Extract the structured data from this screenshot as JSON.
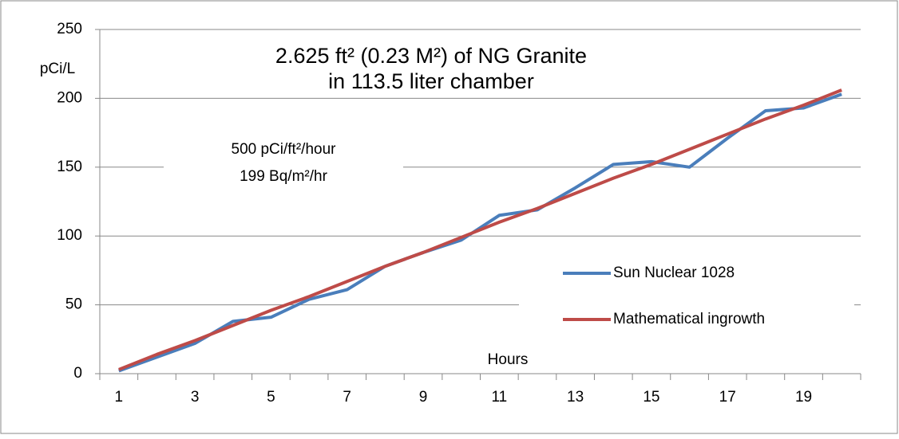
{
  "chart_data": {
    "type": "line",
    "title": "2.625 ft² (0.23 M²) of NG Granite",
    "subtitle": "in 113.5 liter chamber",
    "annotations": [
      "500 pCi/ft²/hour",
      "199 Bq/m²/hr"
    ],
    "y_label": "pCi/L",
    "x_label": "Hours",
    "categories": [
      1,
      null,
      3,
      null,
      5,
      null,
      7,
      null,
      9,
      null,
      11,
      null,
      13,
      null,
      15,
      null,
      17,
      null,
      19,
      null
    ],
    "series": [
      {
        "name": "Sun Nuclear 1028",
        "color": "#4a7ebb",
        "values": [
          2,
          12,
          22,
          38,
          41,
          54,
          61,
          78,
          88,
          97,
          115,
          119,
          135,
          152,
          154,
          150,
          171,
          191,
          193,
          203
        ]
      },
      {
        "name": "Mathematical ingrowth",
        "color": "#be4b48",
        "values": [
          3,
          14,
          24,
          35,
          46,
          56,
          67,
          78,
          88,
          99,
          110,
          120,
          131,
          142,
          152,
          163,
          174,
          185,
          195,
          206
        ]
      }
    ],
    "ylim": [
      0,
      250
    ],
    "yticks": [
      0,
      50,
      100,
      150,
      200,
      250
    ],
    "grid": true,
    "legend": "right"
  }
}
